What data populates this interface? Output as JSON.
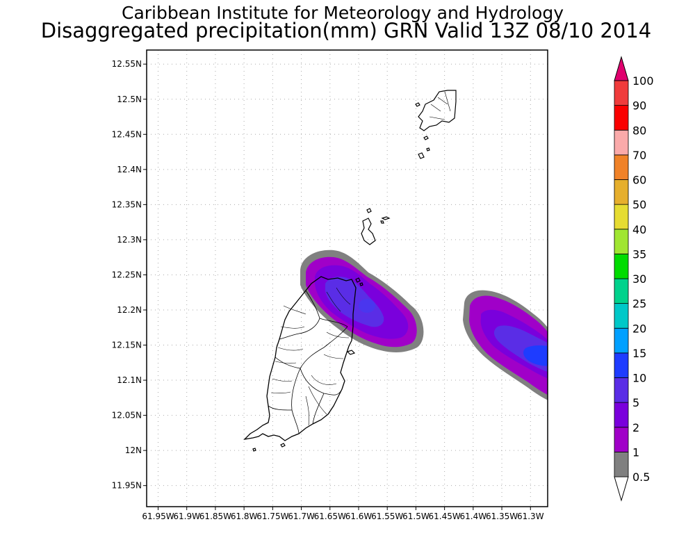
{
  "header": {
    "title": "Caribbean Institute for Meteorology and Hydrology",
    "subtitle": "Disaggregated precipitation(mm) GRN Valid 13Z 08/10 2014"
  },
  "map": {
    "lon_range": [
      -61.97,
      -61.27
    ],
    "lat_range": [
      11.92,
      12.57
    ],
    "lat_ticks": [
      {
        "value": 12.55,
        "label": "12.55N"
      },
      {
        "value": 12.5,
        "label": "12.5N"
      },
      {
        "value": 12.45,
        "label": "12.45N"
      },
      {
        "value": 12.4,
        "label": "12.4N"
      },
      {
        "value": 12.35,
        "label": "12.35N"
      },
      {
        "value": 12.3,
        "label": "12.3N"
      },
      {
        "value": 12.25,
        "label": "12.25N"
      },
      {
        "value": 12.2,
        "label": "12.2N"
      },
      {
        "value": 12.15,
        "label": "12.15N"
      },
      {
        "value": 12.1,
        "label": "12.1N"
      },
      {
        "value": 12.05,
        "label": "12.05N"
      },
      {
        "value": 12.0,
        "label": "12N"
      },
      {
        "value": 11.95,
        "label": "11.95N"
      }
    ],
    "lon_ticks": [
      {
        "value": -61.95,
        "label": "61.95W"
      },
      {
        "value": -61.9,
        "label": "61.9W"
      },
      {
        "value": -61.85,
        "label": "61.85W"
      },
      {
        "value": -61.8,
        "label": "61.8W"
      },
      {
        "value": -61.75,
        "label": "61.75W"
      },
      {
        "value": -61.7,
        "label": "61.7W"
      },
      {
        "value": -61.65,
        "label": "61.65W"
      },
      {
        "value": -61.6,
        "label": "61.6W"
      },
      {
        "value": -61.55,
        "label": "61.55W"
      },
      {
        "value": -61.5,
        "label": "61.5W"
      },
      {
        "value": -61.45,
        "label": "61.45W"
      },
      {
        "value": -61.4,
        "label": "61.4W"
      },
      {
        "value": -61.35,
        "label": "61.35W"
      },
      {
        "value": -61.3,
        "label": "61.3W"
      }
    ],
    "grid": true
  },
  "legend": {
    "levels": [
      {
        "label": "0.5",
        "color": "#ffffff"
      },
      {
        "label": "1",
        "color": "#808080"
      },
      {
        "label": "2",
        "color": "#a000c8"
      },
      {
        "label": "5",
        "color": "#7a00dc"
      },
      {
        "label": "10",
        "color": "#5a2de6"
      },
      {
        "label": "15",
        "color": "#1e3cff"
      },
      {
        "label": "20",
        "color": "#00a0ff"
      },
      {
        "label": "25",
        "color": "#00c8c8"
      },
      {
        "label": "30",
        "color": "#00d28c"
      },
      {
        "label": "35",
        "color": "#00dc00"
      },
      {
        "label": "40",
        "color": "#a0e632"
      },
      {
        "label": "50",
        "color": "#e6dc32"
      },
      {
        "label": "60",
        "color": "#e6af2d"
      },
      {
        "label": "70",
        "color": "#f08228"
      },
      {
        "label": "80",
        "color": "#faaaaa"
      },
      {
        "label": "90",
        "color": "#fa0000"
      },
      {
        "label": "100",
        "color": "#f03c3c"
      }
    ],
    "top_color": "#e0006e"
  },
  "precip_cells": [
    {
      "name": "north-grenada-cell",
      "lon": -61.62,
      "lat": 12.2,
      "peak_mm": 10
    },
    {
      "name": "east-offshore-cell",
      "lon": -61.3,
      "lat": 12.12,
      "peak_mm": 10
    }
  ]
}
